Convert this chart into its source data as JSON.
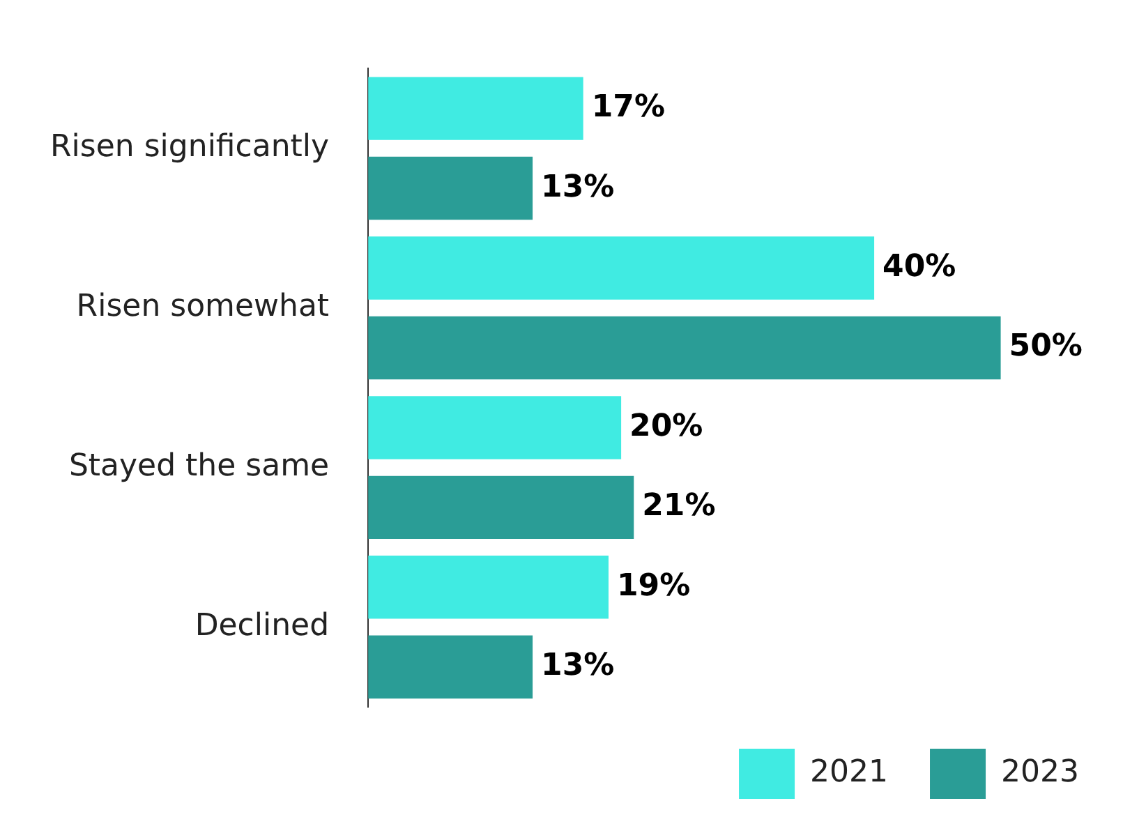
{
  "chart_data": {
    "type": "bar",
    "orientation": "horizontal",
    "categories": [
      "Risen significantly",
      "Risen somewhat",
      "Stayed the same",
      "Declined"
    ],
    "series": [
      {
        "name": "2021",
        "color": "#40ebe2",
        "values": [
          17,
          40,
          20,
          19
        ],
        "value_labels": [
          "17%",
          "40%",
          "20%",
          "19%"
        ]
      },
      {
        "name": "2023",
        "color": "#2a9d96",
        "values": [
          13,
          50,
          21,
          13
        ],
        "value_labels": [
          "13%",
          "50%",
          "21%",
          "13%"
        ]
      }
    ],
    "legend": "bottom right",
    "grid": false,
    "tick_labels": "y"
  }
}
